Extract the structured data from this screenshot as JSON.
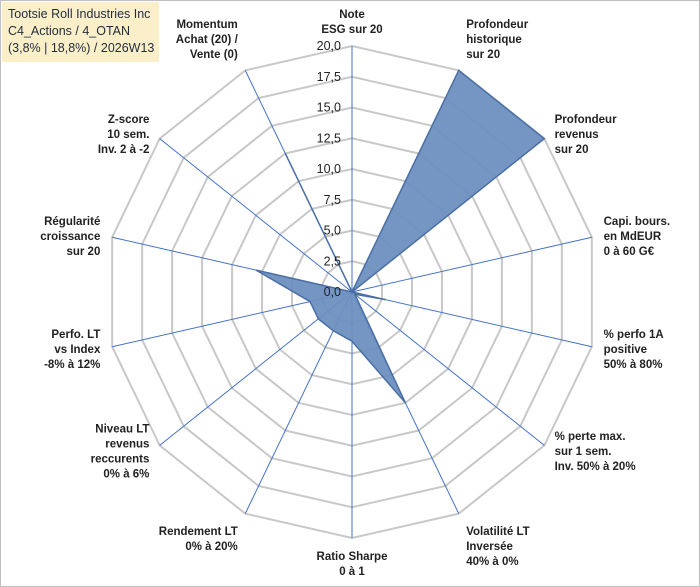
{
  "title_lines": [
    "Tootsie Roll Industries Inc",
    "C4_Actions / 4_OTAN",
    "(3,8% | 18,8%) / 2026W13"
  ],
  "colors": {
    "grid": "#c8c8c8",
    "spoke": "#4472c4",
    "fill": "#6e8fc0",
    "stroke": "#4a6fa5",
    "title_bg": "#fbefc9"
  },
  "chart_data": {
    "type": "radar",
    "rmin": 0,
    "rmax": 20,
    "step": 2.5,
    "tick_labels": [
      "0,0",
      "2,5",
      "5,0",
      "7,5",
      "10,0",
      "12,5",
      "15,0",
      "17,5",
      "20,0"
    ],
    "axes": [
      {
        "label": [
          "Note",
          "ESG sur 20"
        ],
        "value": 0
      },
      {
        "label": [
          "Profondeur",
          "historique",
          "sur 20"
        ],
        "value": 20
      },
      {
        "label": [
          "Profondeur",
          "revenus",
          "sur 20"
        ],
        "value": 20
      },
      {
        "label": [
          "Capi. bours.",
          "en MdEUR",
          "0 à 60 G€"
        ],
        "value": 0
      },
      {
        "label": [
          "% perfo 1A",
          "positive",
          "50% à 80%"
        ],
        "value": 2.8
      },
      {
        "label": [
          "% perte max.",
          "sur 1 sem.",
          "Inv. 50% à 20%"
        ],
        "value": 0.3
      },
      {
        "label": [
          "Volatilité LT",
          "Inversée",
          "40% à 0%"
        ],
        "value": 10
      },
      {
        "label": [
          "Ratio Sharpe",
          "0 à 1"
        ],
        "value": 4
      },
      {
        "label": [
          "Rendement LT",
          "0% à 20%"
        ],
        "value": 3.5
      },
      {
        "label": [
          "Niveau LT",
          "revenus",
          "reccurents",
          "0% à 6%"
        ],
        "value": 3.5
      },
      {
        "label": [
          "Perfo. LT",
          "vs Index",
          "-8% à 12%"
        ],
        "value": 3.5
      },
      {
        "label": [
          "Régularité",
          "croissance",
          "sur 20"
        ],
        "value": 8
      },
      {
        "label": [
          "Z-score",
          "10 sem.",
          "Inv. 2 à -2"
        ],
        "value": 0
      },
      {
        "label": [
          "Momentum",
          "Achat (20) /",
          "Vente (0)"
        ],
        "value": 12.5
      }
    ]
  }
}
